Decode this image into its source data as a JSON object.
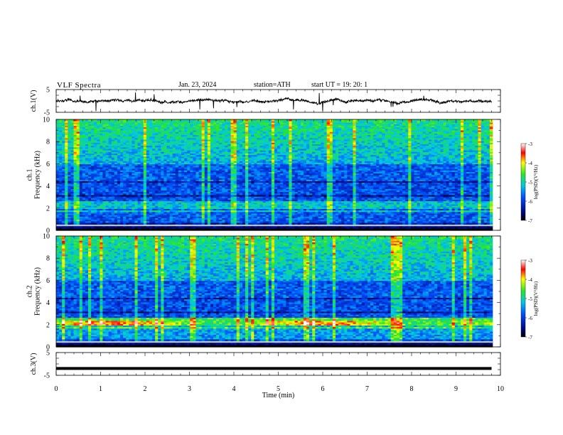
{
  "header": {
    "title": "VLF  Spectra",
    "date": "Jan. 23, 2024",
    "station": "station=ATH",
    "start": "start  UT  =    19: 20: 1"
  },
  "chart_data": [
    {
      "type": "line",
      "ylabel": "ch.1(V)",
      "xlim": [
        0,
        10
      ],
      "ylim": [
        -5,
        5
      ],
      "y_ticks": [
        "5",
        "-5"
      ],
      "baseline": 0,
      "series": [
        {
          "color": "#000000"
        }
      ]
    },
    {
      "type": "heatmap",
      "ylabel": "ch.1\nFrequency  (kHz)",
      "xlim": [
        0,
        10
      ],
      "ylim": [
        0,
        10
      ],
      "y_ticks": [
        "0",
        "2",
        "4",
        "6",
        "8",
        "10"
      ],
      "colorbar": {
        "label": "log(PSD)(V²/Hz)",
        "range": [
          -7,
          -3
        ],
        "ticks": [
          "-3",
          "-4",
          "-5",
          "-6",
          "-7"
        ]
      }
    },
    {
      "type": "heatmap",
      "ylabel": "ch.2\nFrequency  (kHz)",
      "xlim": [
        0,
        10
      ],
      "ylim": [
        0,
        10
      ],
      "y_ticks": [
        "0",
        "2",
        "4",
        "6",
        "8",
        "10"
      ],
      "colorbar": {
        "label": "log(PSD)(V²/Hz)",
        "range": [
          -7,
          -3
        ],
        "ticks": [
          "-3",
          "-4",
          "-5",
          "-6",
          "-7"
        ]
      }
    },
    {
      "type": "line",
      "ylabel": "ch.3(V)",
      "xlabel": "Time  (min)",
      "xlim": [
        0,
        10
      ],
      "ylim": [
        -5,
        5
      ],
      "y_ticks": [
        "5",
        "-5"
      ],
      "x_ticks": [
        "0",
        "1",
        "2",
        "3",
        "4",
        "5",
        "6",
        "7",
        "8",
        "9",
        "10"
      ],
      "baseline": -2,
      "series": [
        {
          "color": "#000000"
        }
      ]
    }
  ]
}
